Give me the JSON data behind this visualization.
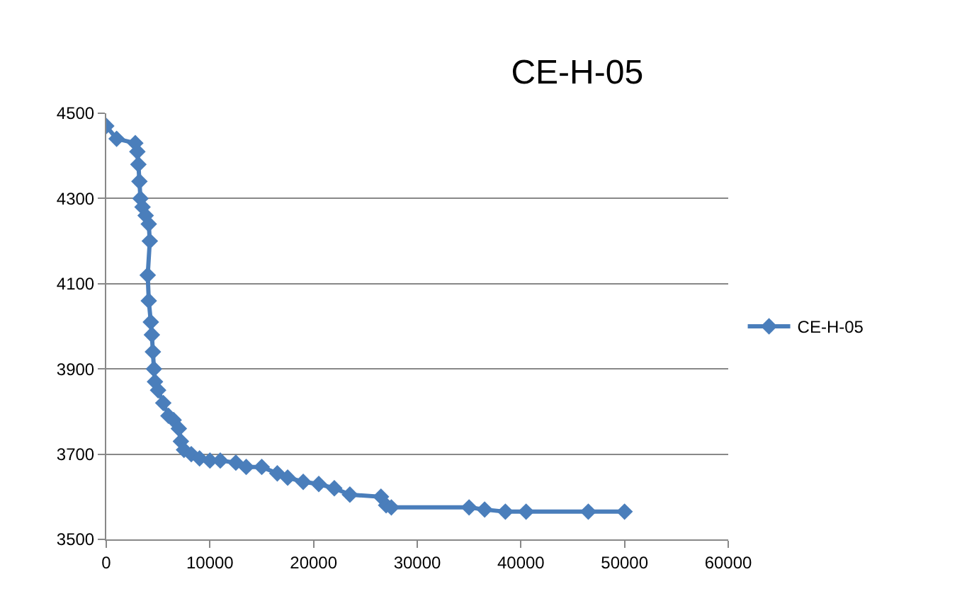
{
  "chart_data": {
    "type": "line",
    "title": "CE-H-05",
    "x": [
      0,
      1000,
      2800,
      3000,
      3100,
      3200,
      3300,
      3500,
      3800,
      4100,
      4200,
      4000,
      4100,
      4300,
      4400,
      4500,
      4600,
      4700,
      5000,
      5500,
      6000,
      6500,
      7000,
      7200,
      7500,
      8200,
      9000,
      10000,
      11000,
      12500,
      13500,
      15000,
      16500,
      17500,
      19000,
      20500,
      22000,
      23500,
      26500,
      27000,
      27500,
      35000,
      36500,
      38500,
      40500,
      46500,
      50000
    ],
    "series": [
      {
        "name": "CE-H-05",
        "color": "#4a7ebb",
        "values": [
          4470,
          4440,
          4430,
          4410,
          4380,
          4340,
          4300,
          4280,
          4260,
          4240,
          4200,
          4120,
          4060,
          4010,
          3980,
          3940,
          3900,
          3870,
          3850,
          3820,
          3790,
          3780,
          3760,
          3730,
          3710,
          3700,
          3690,
          3685,
          3685,
          3680,
          3670,
          3670,
          3655,
          3645,
          3635,
          3630,
          3620,
          3605,
          3600,
          3580,
          3575,
          3575,
          3570,
          3565,
          3565,
          3565,
          3565
        ]
      }
    ],
    "xlim": [
      0,
      60000
    ],
    "xticks": [
      0,
      10000,
      20000,
      30000,
      40000,
      50000,
      60000
    ],
    "ylim": [
      3500,
      4500
    ],
    "yticks": [
      3500,
      3700,
      3900,
      4100,
      4300,
      4500
    ],
    "grid": "y",
    "legend": "right",
    "marker": "diamond",
    "line_style": "solid"
  }
}
